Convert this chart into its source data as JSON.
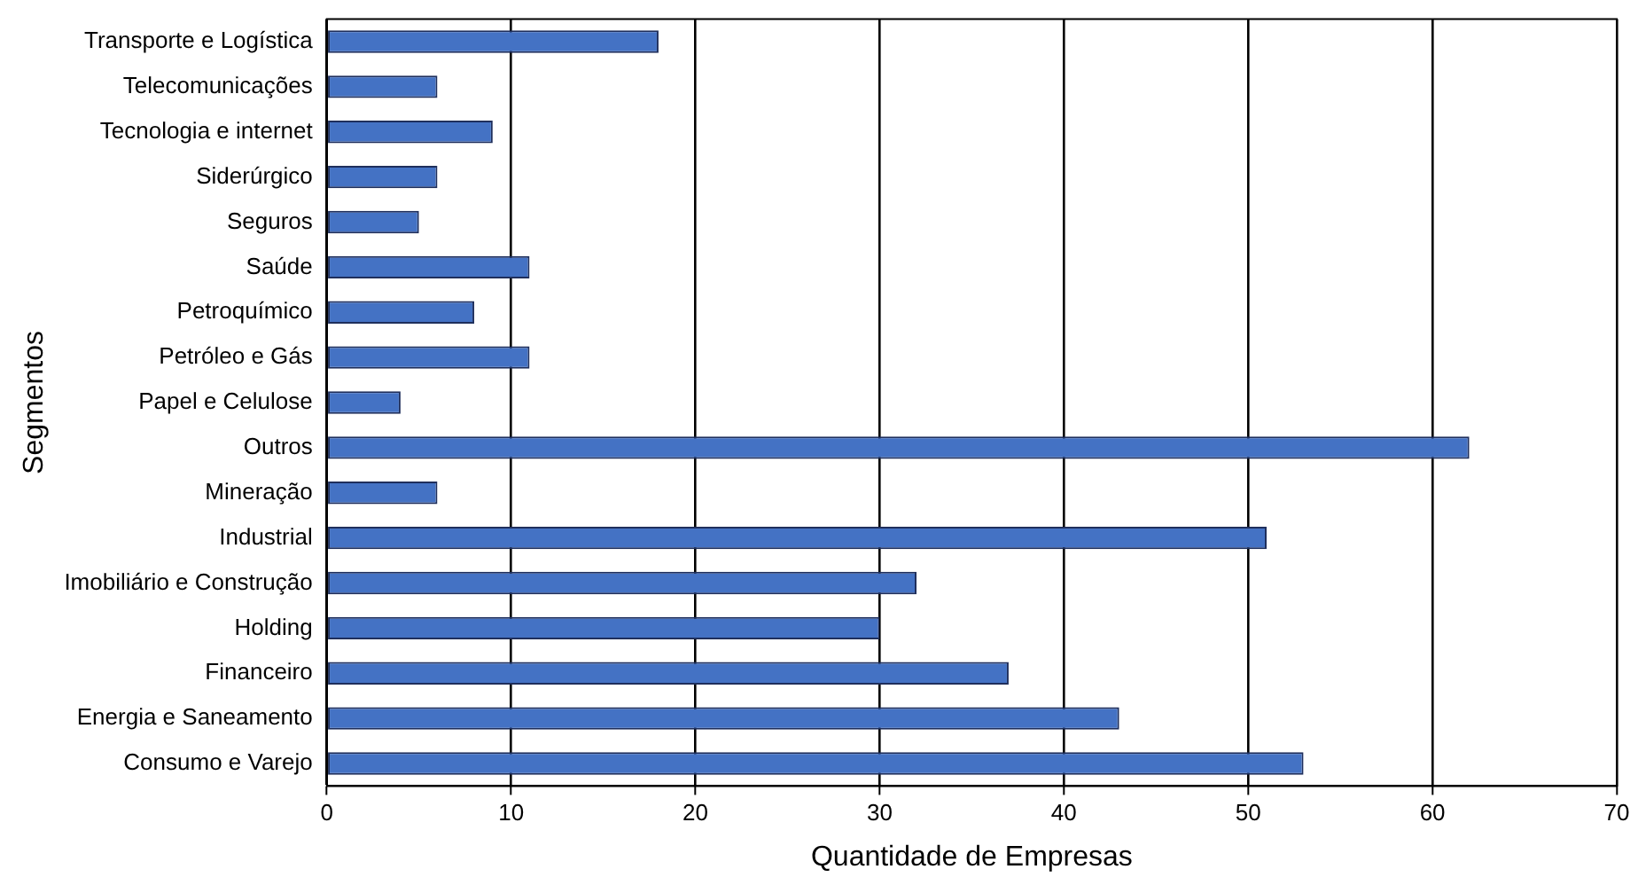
{
  "chart_data": {
    "type": "bar",
    "orientation": "horizontal",
    "xlabel": "Quantidade de Empresas",
    "ylabel": "Segmentos",
    "categories": [
      "Transporte e Logística",
      "Telecomunicações",
      "Tecnologia e internet",
      "Siderúrgico",
      "Seguros",
      "Saúde",
      "Petroquímico",
      "Petróleo e Gás",
      "Papel e Celulose",
      "Outros",
      "Mineração",
      "Industrial",
      "Imobiliário e Construção",
      "Holding",
      "Financeiro",
      "Energia e Saneamento",
      "Consumo e Varejo"
    ],
    "values": [
      18,
      6,
      9,
      6,
      5,
      11,
      8,
      11,
      4,
      62,
      6,
      51,
      32,
      30,
      37,
      43,
      53
    ],
    "color": "#4472c4",
    "xlim": [
      0,
      70
    ],
    "xticks": [
      0,
      10,
      20,
      30,
      40,
      50,
      60,
      70
    ],
    "grid": "x",
    "legend": false
  }
}
